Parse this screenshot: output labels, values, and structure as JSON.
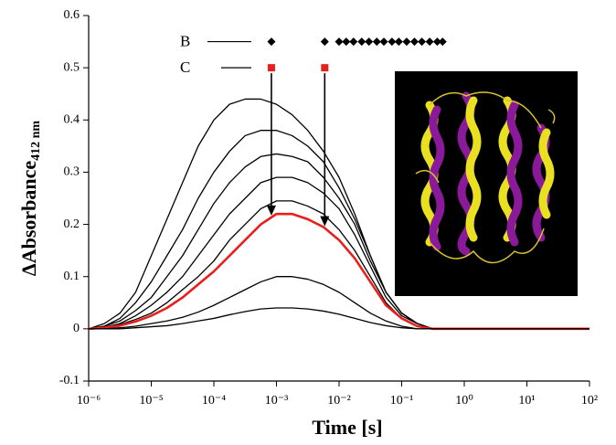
{
  "chart_data": {
    "type": "line",
    "xscale": "log",
    "x_label": "Time [s]",
    "y_label": "ΔAbsorbance",
    "y_label_subscript": "412 nm",
    "xlim": [
      1e-06,
      100
    ],
    "ylim": [
      -0.1,
      0.6
    ],
    "xticks": [
      {
        "value": 1e-06,
        "label": "10⁻⁶"
      },
      {
        "value": 1e-05,
        "label": "10⁻⁵"
      },
      {
        "value": 0.0001,
        "label": "10⁻⁴"
      },
      {
        "value": 0.001,
        "label": "10⁻³"
      },
      {
        "value": 0.01,
        "label": "10⁻²"
      },
      {
        "value": 0.1,
        "label": "10⁻¹"
      },
      {
        "value": 1,
        "label": "10⁰"
      },
      {
        "value": 10,
        "label": "10¹"
      },
      {
        "value": 100,
        "label": "10²"
      }
    ],
    "yticks": [
      -0.1,
      0,
      0.1,
      0.2,
      0.3,
      0.4,
      0.5,
      0.6
    ],
    "x": [
      1e-06,
      1.78e-06,
      3.16e-06,
      5.62e-06,
      1e-05,
      1.78e-05,
      3.16e-05,
      5.62e-05,
      0.0001,
      0.000178,
      0.000316,
      0.000562,
      0.001,
      0.00178,
      0.00316,
      0.00562,
      0.01,
      0.0178,
      0.0316,
      0.0562,
      0.1,
      0.178,
      0.316,
      0.562,
      1,
      10,
      100
    ],
    "series": [
      {
        "color": "#000000",
        "linewidth": 1.3,
        "values": [
          0.0,
          0.01,
          0.03,
          0.07,
          0.14,
          0.21,
          0.28,
          0.35,
          0.4,
          0.43,
          0.44,
          0.44,
          0.43,
          0.41,
          0.38,
          0.34,
          0.29,
          0.22,
          0.14,
          0.07,
          0.03,
          0.01,
          0,
          0,
          0,
          0,
          0
        ]
      },
      {
        "color": "#000000",
        "linewidth": 1.3,
        "values": [
          0.0,
          0.005,
          0.02,
          0.05,
          0.09,
          0.14,
          0.19,
          0.25,
          0.3,
          0.34,
          0.37,
          0.38,
          0.38,
          0.37,
          0.35,
          0.32,
          0.27,
          0.21,
          0.14,
          0.07,
          0.03,
          0.01,
          0,
          0,
          0,
          0,
          0
        ]
      },
      {
        "color": "#000000",
        "linewidth": 1.3,
        "values": [
          0,
          0.005,
          0.015,
          0.035,
          0.06,
          0.1,
          0.14,
          0.19,
          0.24,
          0.28,
          0.31,
          0.33,
          0.335,
          0.33,
          0.32,
          0.29,
          0.25,
          0.2,
          0.13,
          0.07,
          0.03,
          0.01,
          0,
          0,
          0,
          0,
          0
        ]
      },
      {
        "color": "#000000",
        "linewidth": 1.3,
        "values": [
          0,
          0.003,
          0.01,
          0.025,
          0.045,
          0.07,
          0.1,
          0.14,
          0.18,
          0.22,
          0.25,
          0.28,
          0.29,
          0.29,
          0.28,
          0.26,
          0.23,
          0.18,
          0.12,
          0.06,
          0.025,
          0.01,
          0,
          0,
          0,
          0,
          0
        ]
      },
      {
        "color": "#000000",
        "linewidth": 1.3,
        "values": [
          0,
          0.002,
          0.008,
          0.018,
          0.03,
          0.05,
          0.075,
          0.1,
          0.13,
          0.17,
          0.2,
          0.23,
          0.245,
          0.245,
          0.235,
          0.22,
          0.19,
          0.15,
          0.1,
          0.05,
          0.02,
          0.005,
          0,
          0,
          0,
          0,
          0
        ]
      },
      {
        "color": "#e8201c",
        "linewidth": 2.6,
        "values": [
          0,
          0.002,
          0.006,
          0.014,
          0.025,
          0.04,
          0.06,
          0.085,
          0.11,
          0.14,
          0.17,
          0.2,
          0.22,
          0.22,
          0.21,
          0.195,
          0.17,
          0.135,
          0.09,
          0.045,
          0.02,
          0.005,
          0,
          0,
          0,
          0,
          0
        ]
      },
      {
        "color": "#000000",
        "linewidth": 1.3,
        "values": [
          0,
          0,
          0.002,
          0.005,
          0.01,
          0.015,
          0.022,
          0.032,
          0.045,
          0.06,
          0.075,
          0.09,
          0.1,
          0.1,
          0.095,
          0.085,
          0.07,
          0.05,
          0.03,
          0.015,
          0.005,
          0,
          0,
          0,
          0,
          0,
          0
        ]
      },
      {
        "color": "#000000",
        "linewidth": 1.3,
        "values": [
          0,
          0,
          0,
          0.002,
          0.004,
          0.006,
          0.01,
          0.015,
          0.02,
          0.027,
          0.033,
          0.038,
          0.04,
          0.04,
          0.038,
          0.034,
          0.028,
          0.02,
          0.012,
          0.006,
          0.002,
          0,
          0,
          0,
          0,
          0,
          0
        ]
      }
    ],
    "markers": [
      {
        "name": "B",
        "color": "#000000",
        "shape": "diamond",
        "y": 0.55,
        "x": [
          0.00083,
          0.0059,
          0.01,
          0.013,
          0.017,
          0.023,
          0.03,
          0.04,
          0.052,
          0.07,
          0.09,
          0.12,
          0.16,
          0.21,
          0.28,
          0.37,
          0.45
        ]
      },
      {
        "name": "C",
        "color": "#e8201c",
        "shape": "square",
        "y": 0.5,
        "x": [
          0.00083,
          0.0059
        ]
      }
    ]
  }
}
